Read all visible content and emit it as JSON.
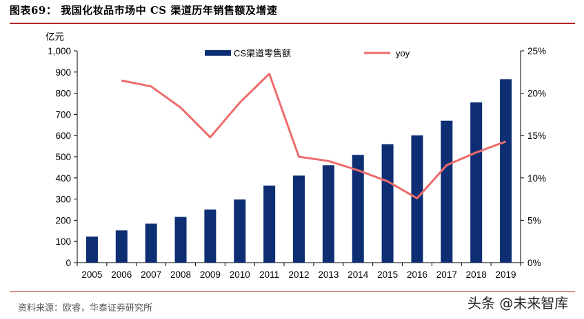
{
  "title": "图表69：  我国化妆品市场中 CS 渠道历年销售额及增速",
  "source": "资料来源：欧睿，华泰证券研究所",
  "watermark": "头条 @未来智库",
  "colors": {
    "bar": "#0d2e73",
    "line": "#ee6b6b",
    "rule": "#b22222"
  },
  "chart_data": {
    "type": "bar",
    "categories": [
      "2005",
      "2006",
      "2007",
      "2008",
      "2009",
      "2010",
      "2011",
      "2012",
      "2013",
      "2014",
      "2015",
      "2016",
      "2017",
      "2018",
      "2019"
    ],
    "series": [
      {
        "name": "CS渠道零售额",
        "type": "bar",
        "axis": "left",
        "values": [
          123,
          152,
          184,
          216,
          251,
          298,
          364,
          411,
          460,
          509,
          559,
          601,
          670,
          757,
          866
        ]
      },
      {
        "name": "yoy",
        "type": "line",
        "axis": "right",
        "values": [
          null,
          21.5,
          20.8,
          18.3,
          14.8,
          18.9,
          22.3,
          12.5,
          12.0,
          10.9,
          9.6,
          7.6,
          11.5,
          13.0,
          14.3
        ]
      }
    ],
    "ylabel": "亿元",
    "ylim": [
      0,
      1000
    ],
    "yticks": [
      "0",
      "100",
      "200",
      "300",
      "400",
      "500",
      "600",
      "700",
      "800",
      "900",
      "1,000"
    ],
    "y2lim": [
      0,
      25
    ],
    "y2ticks": [
      "0%",
      "5%",
      "10%",
      "15%",
      "20%",
      "25%"
    ],
    "legend_position": "top"
  }
}
